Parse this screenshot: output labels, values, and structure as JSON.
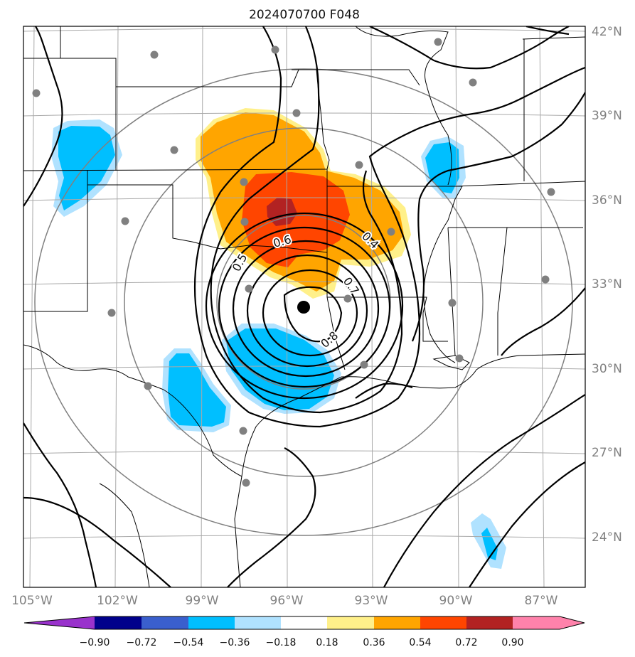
{
  "title": "2024070700 F048",
  "map": {
    "lon_ticks": [
      {
        "value": -105,
        "label": "105°W"
      },
      {
        "value": -102,
        "label": "102°W"
      },
      {
        "value": -99,
        "label": "99°W"
      },
      {
        "value": -96,
        "label": "96°W"
      },
      {
        "value": -93,
        "label": "93°W"
      },
      {
        "value": -90,
        "label": "90°W"
      },
      {
        "value": -87,
        "label": "87°W"
      }
    ],
    "lat_ticks": [
      {
        "value": 42,
        "label": "42°N"
      },
      {
        "value": 39,
        "label": "39°N"
      },
      {
        "value": 36,
        "label": "36°N"
      },
      {
        "value": 33,
        "label": "33°N"
      },
      {
        "value": 30,
        "label": "30°N"
      },
      {
        "value": 27,
        "label": "27°N"
      },
      {
        "value": 24,
        "label": "24°N"
      }
    ],
    "center": {
      "lon": -95.3,
      "lat": 32.3
    },
    "contour_labels": [
      "0.4",
      "0.6",
      "0.5",
      "0.7",
      "0.8"
    ],
    "colors": {
      "grid": "#a9a9a9",
      "range_ring": "#808080",
      "station": "#808080",
      "contour": "#000000"
    }
  },
  "colorbar": {
    "colors": [
      "#9932cc",
      "#00008b",
      "#3a5fcd",
      "#00bfff",
      "#b0e2ff",
      "#ffffff",
      "#fff08a",
      "#ffa500",
      "#ff4500",
      "#b22222",
      "#ff82ab"
    ],
    "labels": [
      "−0.90",
      "−0.72",
      "−0.54",
      "−0.36",
      "−0.18",
      "0.18",
      "0.36",
      "0.54",
      "0.72",
      "0.90"
    ]
  }
}
